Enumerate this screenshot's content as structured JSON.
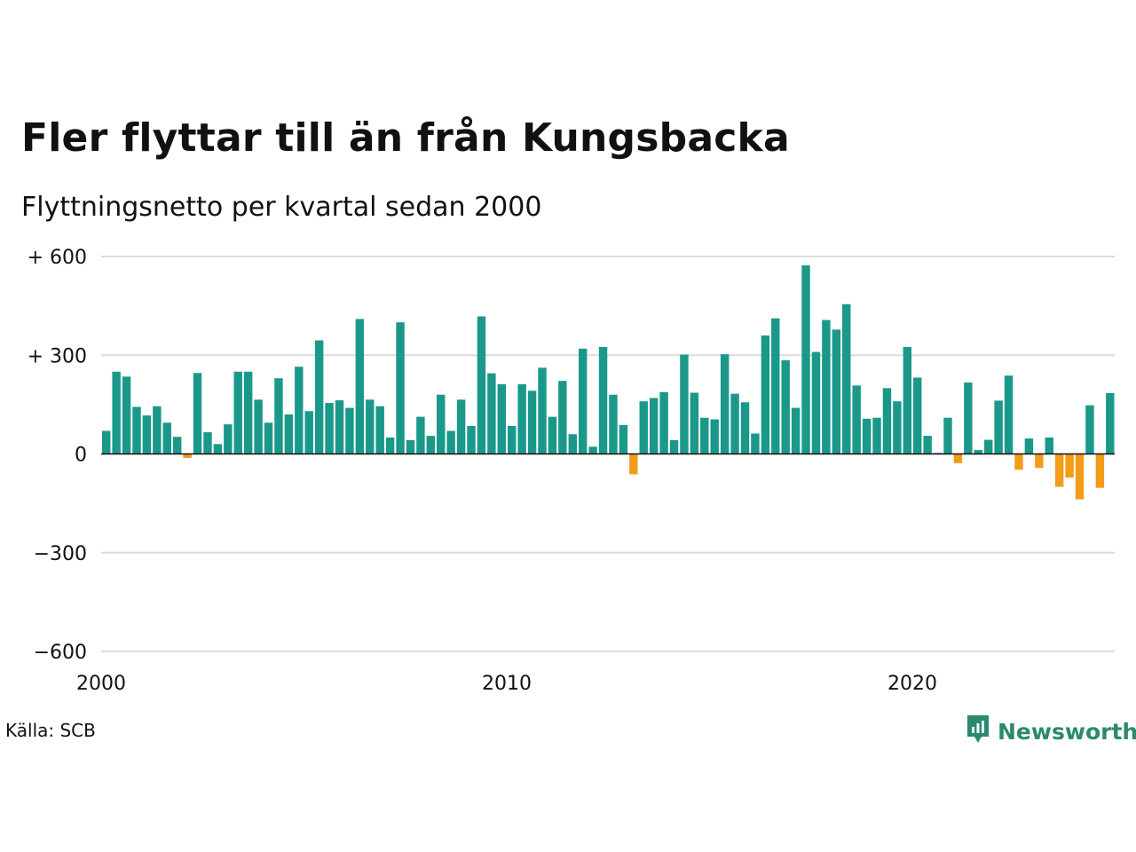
{
  "title": "Fler flyttar till än från Kungsbacka",
  "subtitle": "Flyttningsnetto per kvartal sedan 2000",
  "source": "Källa: SCB",
  "brand": {
    "name": "Newsworthy",
    "icon": "newsworthy-logo-icon",
    "color": "#2a8a6e"
  },
  "colors": {
    "positive": "#1a998a",
    "negative": "#f39c1a"
  },
  "chart_data": {
    "type": "bar",
    "title": "Fler flyttar till än från Kungsbacka",
    "subtitle": "Flyttningsnetto per kvartal sedan 2000",
    "xlabel": "",
    "ylabel": "",
    "ylim": [
      -600,
      600
    ],
    "yticks": [
      600,
      300,
      0,
      -300,
      -600
    ],
    "ytick_labels": [
      "+ 600",
      "+ 300",
      "0",
      "−300",
      "−600"
    ],
    "xlim": [
      2000,
      2025
    ],
    "xticks": [
      2000,
      2010,
      2020
    ],
    "xtick_labels": [
      "2000",
      "2010",
      "2020"
    ],
    "start_year": 2000,
    "period": "quarter",
    "grid": true,
    "legend": "none",
    "values": [
      70,
      250,
      235,
      143,
      117,
      145,
      95,
      52,
      -12,
      246,
      66,
      30,
      90,
      250,
      250,
      165,
      95,
      230,
      120,
      265,
      130,
      345,
      155,
      163,
      140,
      410,
      165,
      145,
      50,
      400,
      42,
      113,
      55,
      180,
      70,
      165,
      85,
      418,
      245,
      212,
      85,
      212,
      192,
      262,
      113,
      222,
      60,
      320,
      22,
      325,
      180,
      88,
      -62,
      160,
      170,
      188,
      42,
      302,
      186,
      110,
      105,
      303,
      183,
      157,
      62,
      360,
      412,
      285,
      140,
      573,
      310,
      407,
      378,
      455,
      208,
      107,
      110,
      200,
      160,
      325,
      232,
      55,
      3,
      110,
      -28,
      217,
      12,
      43,
      162,
      238,
      -48,
      47,
      -42,
      50,
      -100,
      -72,
      -138,
      148,
      -103,
      185
    ]
  }
}
